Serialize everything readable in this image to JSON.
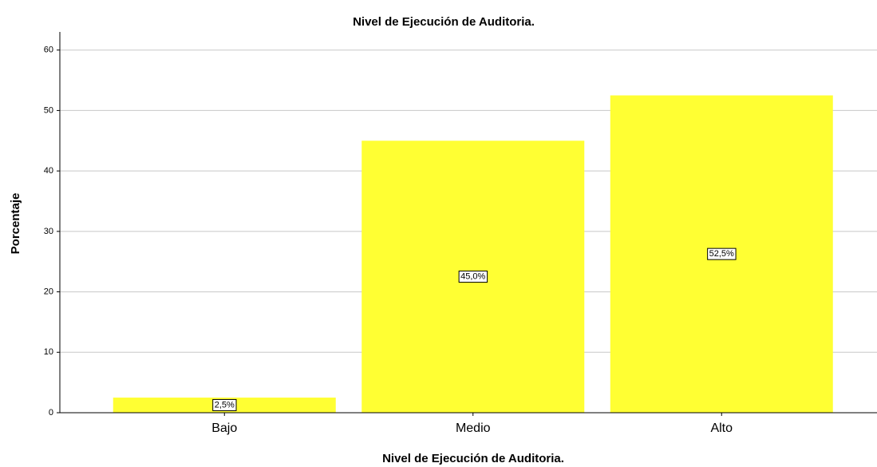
{
  "chart_data": {
    "type": "bar",
    "title": "Nivel de Ejecución de Auditoria.",
    "x_label": "Nivel de Ejecución de Auditoria.",
    "y_label": "Porcentaje",
    "categories": [
      "Bajo",
      "Medio",
      "Alto"
    ],
    "values": [
      2.5,
      45.0,
      52.5
    ],
    "value_labels": [
      "2,5%",
      "45,0%",
      "52,5%"
    ],
    "color": "#ffff33",
    "ylim": [
      0,
      63
    ],
    "yticks": [
      0,
      10,
      20,
      30,
      40,
      50,
      60
    ],
    "grid": true
  }
}
